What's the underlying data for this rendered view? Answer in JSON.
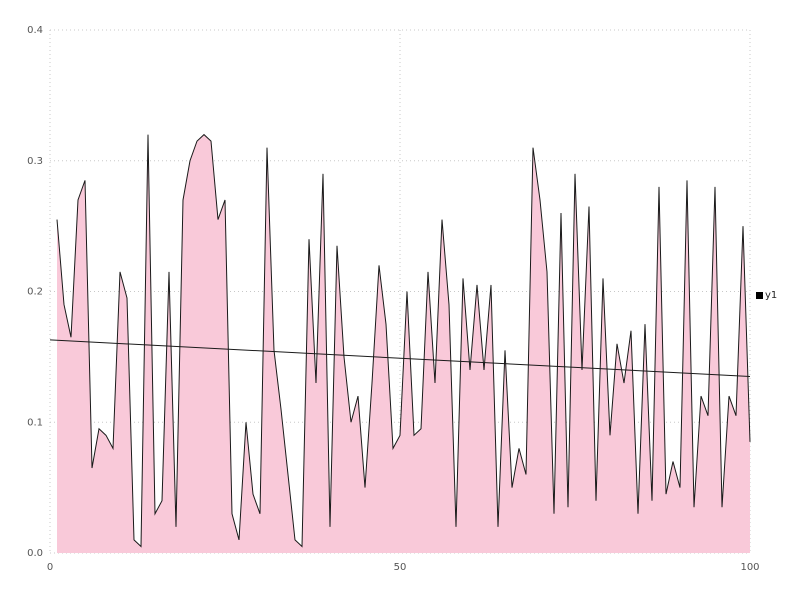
{
  "chart_data": {
    "type": "area",
    "title": "",
    "xlabel": "",
    "ylabel": "",
    "xlim": [
      0,
      100
    ],
    "ylim": [
      0.0,
      0.4
    ],
    "x_ticks": [
      0,
      50,
      100
    ],
    "x_tick_labels": [
      "0",
      "50",
      "100"
    ],
    "y_ticks": [
      0.0,
      0.1,
      0.2,
      0.3,
      0.4
    ],
    "y_tick_labels": [
      "0.0",
      "0.1",
      "0.2",
      "0.3",
      "0.4"
    ],
    "grid": true,
    "grid_style": "dotted",
    "grid_color": "#c8c8c8",
    "legend_position": "right",
    "series": [
      {
        "name": "y1",
        "type": "area",
        "line_color": "#1a1a1a",
        "fill_color": "#f9c9d9",
        "x_start": 1,
        "x_step": 1,
        "values": [
          0.255,
          0.19,
          0.165,
          0.27,
          0.285,
          0.065,
          0.095,
          0.09,
          0.08,
          0.215,
          0.195,
          0.01,
          0.005,
          0.32,
          0.03,
          0.04,
          0.215,
          0.02,
          0.27,
          0.3,
          0.315,
          0.32,
          0.315,
          0.255,
          0.27,
          0.03,
          0.01,
          0.1,
          0.045,
          0.03,
          0.31,
          0.155,
          0.11,
          0.06,
          0.01,
          0.005,
          0.24,
          0.13,
          0.29,
          0.02,
          0.235,
          0.15,
          0.1,
          0.12,
          0.05,
          0.13,
          0.22,
          0.175,
          0.08,
          0.09,
          0.2,
          0.09,
          0.095,
          0.215,
          0.13,
          0.255,
          0.19,
          0.02,
          0.21,
          0.14,
          0.205,
          0.14,
          0.205,
          0.02,
          0.155,
          0.05,
          0.08,
          0.06,
          0.31,
          0.27,
          0.215,
          0.03,
          0.26,
          0.035,
          0.29,
          0.14,
          0.265,
          0.04,
          0.21,
          0.09,
          0.16,
          0.13,
          0.17,
          0.03,
          0.175,
          0.04,
          0.28,
          0.045,
          0.07,
          0.05,
          0.285,
          0.035,
          0.12,
          0.105,
          0.28,
          0.035,
          0.12,
          0.105,
          0.25,
          0.085
        ]
      },
      {
        "name": "trend",
        "type": "line",
        "line_color": "#1a1a1a",
        "x": [
          0,
          100
        ],
        "values": [
          0.163,
          0.135
        ]
      }
    ]
  }
}
